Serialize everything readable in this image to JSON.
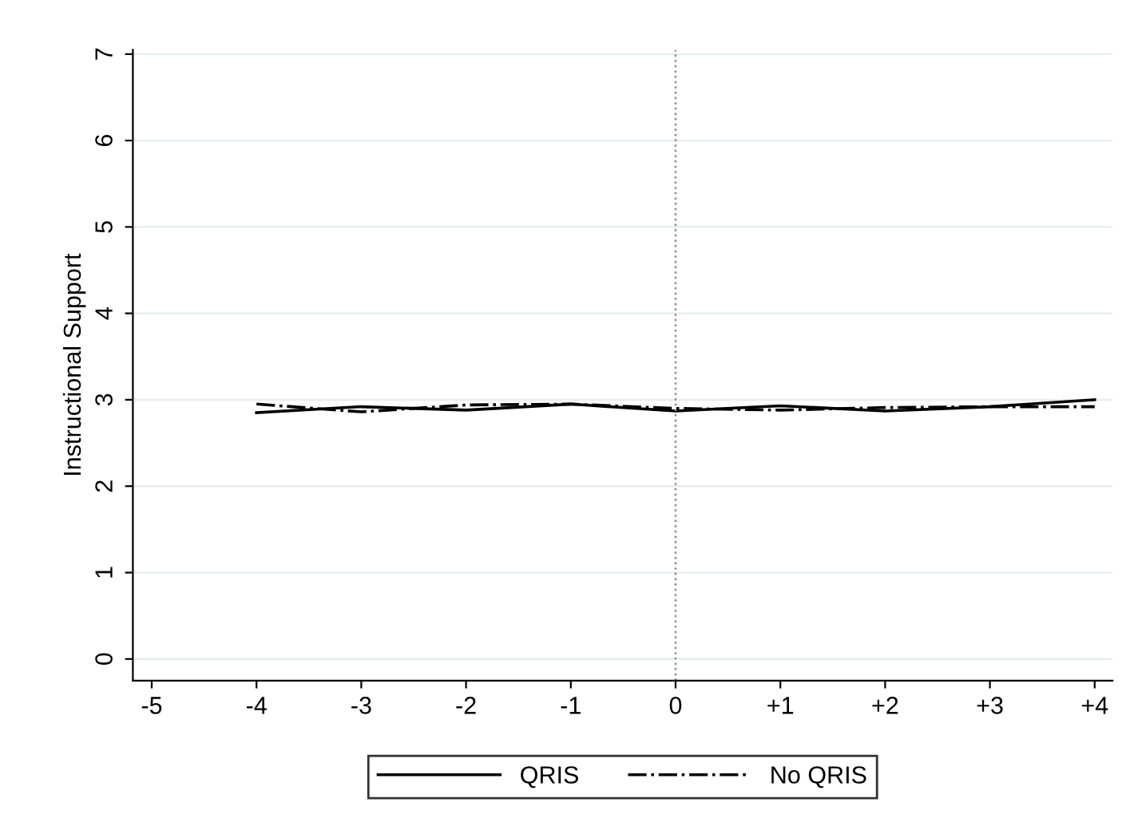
{
  "chart_data": {
    "type": "line",
    "ylabel": "Instructional Support",
    "x": [
      -4,
      -3,
      -2,
      -1,
      0,
      1,
      2,
      3,
      4
    ],
    "series": [
      {
        "name": "QRIS",
        "color": "#000000",
        "line_style": "solid",
        "values": [
          2.85,
          2.92,
          2.88,
          2.95,
          2.87,
          2.93,
          2.87,
          2.92,
          3.0
        ]
      },
      {
        "name": "No QRIS",
        "color": "#000000",
        "line_style": "dashdot",
        "values": [
          2.95,
          2.86,
          2.94,
          2.95,
          2.9,
          2.88,
          2.91,
          2.92,
          2.92
        ]
      }
    ],
    "xlim": [
      -5.18,
      4.17
    ],
    "ylim": [
      -0.25,
      7.05
    ],
    "xticks": [
      -5,
      -4,
      -3,
      -2,
      -1,
      0,
      {
        "value": 1,
        "label": "+1"
      },
      {
        "value": 2,
        "label": "+2"
      },
      {
        "value": 3,
        "label": "+3"
      },
      {
        "value": 4,
        "label": "+4"
      }
    ],
    "yticks": [
      0,
      1,
      2,
      3,
      4,
      5,
      6,
      7
    ],
    "grid": "y",
    "legend": "bottom",
    "marker": "none",
    "ref_lines": [
      {
        "axis": "x",
        "value": 0,
        "color": "#888888",
        "line_style": "dotted"
      }
    ]
  }
}
